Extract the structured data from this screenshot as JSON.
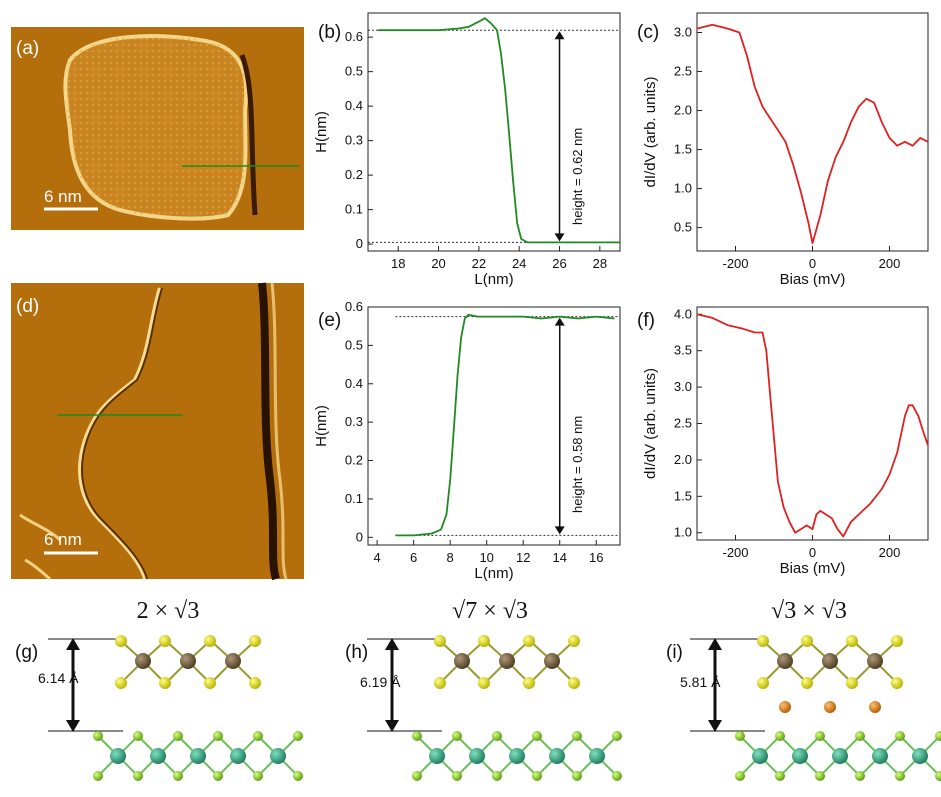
{
  "panels": {
    "a": {
      "label": "(a)",
      "scale_bar": "6 nm"
    },
    "b": {
      "label": "(b)",
      "annotation": "height = 0.62 nm"
    },
    "c": {
      "label": "(c)"
    },
    "d": {
      "label": "(d)",
      "scale_bar": "6 nm"
    },
    "e": {
      "label": "(e)",
      "annotation": "height = 0.58 nm"
    },
    "f": {
      "label": "(f)"
    },
    "g": {
      "label": "(g)",
      "title": "2 × √3",
      "spacing": "6.14 Å"
    },
    "h": {
      "label": "(h)",
      "title": "√7 × √3",
      "spacing": "6.19 Å"
    },
    "i": {
      "label": "(i)",
      "title": "√3 × √3",
      "spacing": "5.81 Å"
    }
  },
  "colors": {
    "profile_line": "#1f8a1f",
    "spectrum_line": "#e02020",
    "stm_base": "#b8730f",
    "atom_metal": "#6b5a3e",
    "atom_chalcogen": "#e6e000",
    "atom_substrate_large": "#2e9e7a",
    "atom_substrate_small": "#8fd12a",
    "atom_intercalant": "#e08020"
  },
  "chart_data": [
    {
      "panel": "b",
      "type": "line",
      "xlabel": "L(nm)",
      "ylabel": "H(nm)",
      "xlim": [
        16.5,
        29
      ],
      "ylim": [
        -0.02,
        0.67
      ],
      "xticks": [
        18,
        20,
        22,
        24,
        26,
        28
      ],
      "yticks": [
        0,
        0.1,
        0.2,
        0.3,
        0.4,
        0.5,
        0.6
      ],
      "x": [
        17,
        18,
        19,
        20,
        21,
        21.5,
        22,
        22.3,
        22.6,
        22.9,
        23.1,
        23.3,
        23.5,
        23.7,
        23.9,
        24.1,
        24.4,
        25,
        26,
        27,
        28,
        29
      ],
      "y": [
        0.62,
        0.62,
        0.62,
        0.62,
        0.625,
        0.63,
        0.645,
        0.655,
        0.64,
        0.62,
        0.55,
        0.45,
        0.32,
        0.18,
        0.06,
        0.015,
        0.005,
        0.005,
        0.005,
        0.005,
        0.005,
        0.005
      ]
    },
    {
      "panel": "c",
      "type": "line",
      "xlabel": "Bias (mV)",
      "ylabel": "dI/dV (arb. units)",
      "xlim": [
        -300,
        300
      ],
      "ylim": [
        0.2,
        3.25
      ],
      "xticks": [
        -200,
        0,
        200
      ],
      "yticks": [
        0.5,
        1.0,
        1.5,
        2.0,
        2.5,
        3.0
      ],
      "x": [
        -300,
        -260,
        -220,
        -190,
        -170,
        -150,
        -130,
        -110,
        -90,
        -70,
        -50,
        -30,
        -10,
        0,
        20,
        40,
        60,
        80,
        100,
        120,
        140,
        160,
        180,
        200,
        220,
        240,
        260,
        280,
        300
      ],
      "y": [
        3.05,
        3.1,
        3.05,
        3.0,
        2.7,
        2.3,
        2.05,
        1.9,
        1.75,
        1.6,
        1.3,
        0.95,
        0.55,
        0.3,
        0.65,
        1.1,
        1.4,
        1.6,
        1.85,
        2.05,
        2.15,
        2.1,
        1.85,
        1.65,
        1.55,
        1.6,
        1.55,
        1.65,
        1.6
      ]
    },
    {
      "panel": "e",
      "type": "line",
      "xlabel": "L(nm)",
      "ylabel": "H(nm)",
      "xlim": [
        3.5,
        17.3
      ],
      "ylim": [
        -0.02,
        0.6
      ],
      "xticks": [
        4,
        6,
        8,
        10,
        12,
        14,
        16
      ],
      "yticks": [
        0,
        0.1,
        0.2,
        0.3,
        0.4,
        0.5,
        0.6
      ],
      "x": [
        5,
        6,
        7,
        7.5,
        7.8,
        8.0,
        8.2,
        8.4,
        8.6,
        8.8,
        9.0,
        9.5,
        10,
        11,
        12,
        13,
        14,
        15,
        16,
        17
      ],
      "y": [
        0.005,
        0.005,
        0.01,
        0.02,
        0.06,
        0.15,
        0.28,
        0.42,
        0.52,
        0.57,
        0.58,
        0.575,
        0.575,
        0.575,
        0.575,
        0.57,
        0.575,
        0.57,
        0.575,
        0.57
      ]
    },
    {
      "panel": "f",
      "type": "line",
      "xlabel": "Bias (mV)",
      "ylabel": "dI/dV (arb. units)",
      "xlim": [
        -300,
        300
      ],
      "ylim": [
        0.9,
        4.1
      ],
      "xticks": [
        -200,
        0,
        200
      ],
      "yticks": [
        1.0,
        1.5,
        2.0,
        2.5,
        3.0,
        3.5,
        4.0
      ],
      "x": [
        -300,
        -260,
        -220,
        -180,
        -150,
        -130,
        -120,
        -110,
        -100,
        -90,
        -75,
        -60,
        -45,
        -30,
        -15,
        0,
        10,
        20,
        35,
        50,
        65,
        80,
        100,
        120,
        150,
        180,
        200,
        220,
        240,
        250,
        260,
        275,
        290,
        300
      ],
      "y": [
        4.0,
        3.95,
        3.85,
        3.8,
        3.75,
        3.75,
        3.5,
        2.9,
        2.3,
        1.7,
        1.35,
        1.15,
        1.0,
        1.05,
        1.1,
        1.05,
        1.25,
        1.3,
        1.25,
        1.2,
        1.05,
        0.95,
        1.15,
        1.25,
        1.4,
        1.6,
        1.8,
        2.1,
        2.6,
        2.75,
        2.75,
        2.6,
        2.35,
        2.2
      ]
    }
  ]
}
